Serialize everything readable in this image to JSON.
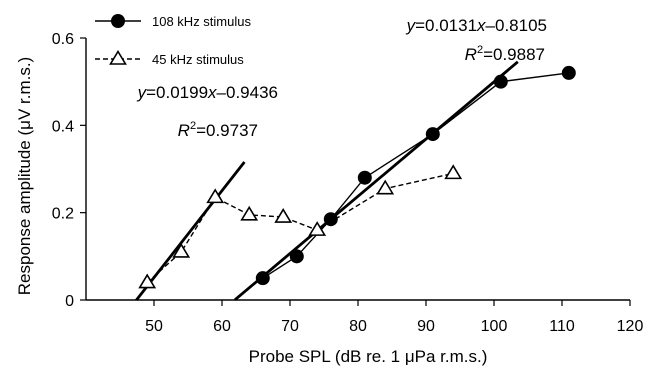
{
  "chart_data": {
    "type": "line",
    "title": "",
    "xlabel": "Probe SPL (dB re. 1 μPa r.m.s.)",
    "ylabel": "Response amplitude (μV r.m.s.)",
    "xlim": [
      40,
      120
    ],
    "ylim": [
      0,
      0.6
    ],
    "xticks": [
      50,
      60,
      70,
      80,
      90,
      100,
      110,
      120
    ],
    "yticks": [
      0,
      0.2,
      0.4,
      0.6
    ],
    "ytick_labels": [
      "0",
      "0.2",
      "0.4",
      "0.6"
    ],
    "grid": false,
    "legend_position": "top-left",
    "series": [
      {
        "name": "108 kHz stimulus",
        "marker": "filled-circle",
        "line": "solid",
        "color": "#000000",
        "x": [
          66,
          71,
          76,
          81,
          91,
          101,
          111
        ],
        "y": [
          0.05,
          0.1,
          0.185,
          0.28,
          0.38,
          0.5,
          0.52
        ]
      },
      {
        "name": "45 kHz stimulus",
        "marker": "open-triangle",
        "line": "dashed",
        "color": "#000000",
        "x": [
          49,
          54,
          59,
          64,
          69,
          74,
          84,
          94
        ],
        "y": [
          0.04,
          0.11,
          0.235,
          0.195,
          0.19,
          0.16,
          0.255,
          0.29
        ]
      }
    ],
    "fits": [
      {
        "series": "45 kHz stimulus",
        "slope": 0.0199,
        "intercept": -0.9436,
        "x_range": [
          47.4,
          63.3
        ],
        "equation_y": "y",
        "equation_rest": "=0.0199",
        "equation_x": "x",
        "equation_tail": "–0.9436",
        "r2_label": "R",
        "r2_sup": "2",
        "r2_value": "=0.9737"
      },
      {
        "series": "108 kHz stimulus",
        "slope": 0.0131,
        "intercept": -0.8105,
        "x_range": [
          61.9,
          103.5
        ],
        "equation_y": "y",
        "equation_rest": "=0.0131",
        "equation_x": "x",
        "equation_tail": "–0.8105",
        "r2_label": "R",
        "r2_sup": "2",
        "r2_value": "=0.9887"
      }
    ]
  }
}
